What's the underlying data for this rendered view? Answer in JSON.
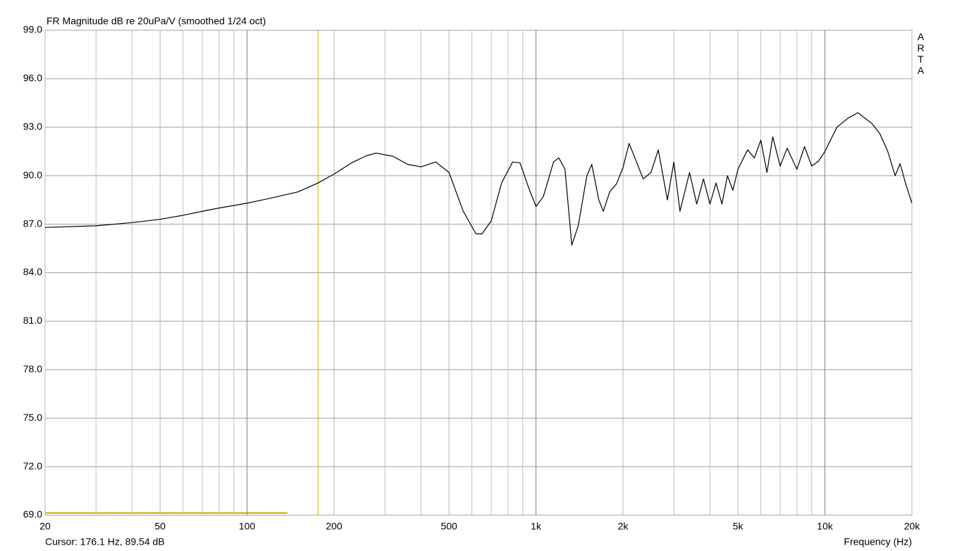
{
  "chart_data": {
    "type": "line",
    "title": "FR Magnitude dB re 20uPa/V (smoothed 1/24 oct)",
    "x_label": "Frequency (Hz)",
    "watermark": "ARTA",
    "cursor_label": "Cursor: 176.1 Hz, 89.54 dB",
    "cursor_x": 176.1,
    "cursor_color": "#c8b400",
    "log_x": true,
    "grid": true,
    "xlim": [
      20,
      20000
    ],
    "xticks": [
      20,
      50,
      100,
      200,
      500,
      {
        "value": 1000,
        "label": "1k"
      },
      {
        "value": 2000,
        "label": "2k"
      },
      {
        "value": 5000,
        "label": "5k"
      },
      {
        "value": 10000,
        "label": "10k"
      },
      {
        "value": 20000,
        "label": "20k"
      }
    ],
    "xminorticks": [
      30,
      40,
      60,
      70,
      80,
      90,
      300,
      400,
      600,
      700,
      800,
      900,
      3000,
      4000,
      6000,
      7000,
      8000,
      9000
    ],
    "ylim": [
      69,
      99
    ],
    "yticks": [
      {
        "value": 69,
        "label": "69.0"
      },
      {
        "value": 72,
        "label": "72.0"
      },
      {
        "value": 75,
        "label": "75.0"
      },
      {
        "value": 78,
        "label": "78.0"
      },
      {
        "value": 81,
        "label": "81.0"
      },
      {
        "value": 84,
        "label": "84.0"
      },
      {
        "value": 87,
        "label": "87.0"
      },
      {
        "value": 90,
        "label": "90.0"
      },
      {
        "value": 93,
        "label": "93.0"
      },
      {
        "value": 96,
        "label": "96.0"
      },
      {
        "value": 99,
        "label": "99.0"
      }
    ],
    "x": [
      20,
      30,
      40,
      50,
      60,
      70,
      80,
      100,
      120,
      150,
      176,
      200,
      230,
      260,
      280,
      320,
      360,
      400,
      450,
      500,
      560,
      620,
      650,
      700,
      760,
      830,
      880,
      950,
      1000,
      1060,
      1150,
      1200,
      1260,
      1330,
      1400,
      1500,
      1560,
      1650,
      1710,
      1800,
      1900,
      2000,
      2100,
      2200,
      2350,
      2500,
      2650,
      2850,
      3000,
      3150,
      3400,
      3600,
      3800,
      4000,
      4200,
      4400,
      4600,
      4800,
      5000,
      5400,
      5700,
      6000,
      6300,
      6600,
      7000,
      7400,
      8000,
      8500,
      9000,
      9500,
      10000,
      11000,
      12000,
      13000,
      14500,
      15500,
      16500,
      17500,
      18200,
      19000,
      20000
    ],
    "series": [
      {
        "name": "FR",
        "color": "#000000",
        "values": [
          86.8,
          86.9,
          87.1,
          87.3,
          87.55,
          87.8,
          88.0,
          88.3,
          88.6,
          89.0,
          89.55,
          90.1,
          90.8,
          91.25,
          91.4,
          91.2,
          90.7,
          90.55,
          90.85,
          90.2,
          87.8,
          86.4,
          86.4,
          87.2,
          89.55,
          90.85,
          90.8,
          89.1,
          88.1,
          88.7,
          90.85,
          91.1,
          90.4,
          85.7,
          86.9,
          90.0,
          90.7,
          88.5,
          87.8,
          89.0,
          89.5,
          90.5,
          92.0,
          91.1,
          89.8,
          90.2,
          91.6,
          88.5,
          90.85,
          87.8,
          90.2,
          88.25,
          89.8,
          88.25,
          89.55,
          88.25,
          90.0,
          89.1,
          90.4,
          91.6,
          91.1,
          92.2,
          90.2,
          92.4,
          90.6,
          91.7,
          90.4,
          91.8,
          90.6,
          90.9,
          91.5,
          93.0,
          93.55,
          93.9,
          93.25,
          92.6,
          91.5,
          90.0,
          90.75,
          89.55,
          88.3
        ]
      }
    ]
  }
}
